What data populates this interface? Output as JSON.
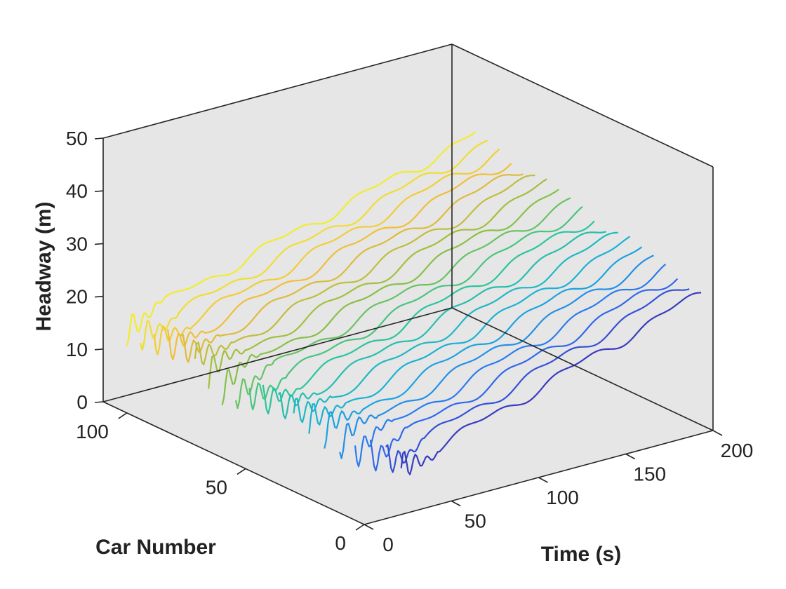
{
  "chart_data": {
    "type": "line3d",
    "xlabel": "Time (s)",
    "ylabel": "Car Number",
    "zlabel": "Headway (m)",
    "xlim": [
      0,
      200
    ],
    "ylim": [
      0,
      110
    ],
    "zlim": [
      0,
      50
    ],
    "x_ticks": [
      0,
      50,
      100,
      150,
      200
    ],
    "y_ticks": [
      0,
      50,
      100
    ],
    "z_ticks": [
      0,
      10,
      20,
      30,
      40,
      50
    ],
    "grid": false,
    "colormap": [
      "#3e26a8",
      "#2e6ef5",
      "#18afdb",
      "#2ac59c",
      "#8fc13f",
      "#f0b93b",
      "#f2ec2e"
    ],
    "series": [
      {
        "car": 5,
        "x_start": 28,
        "x_end": 200,
        "z_start": 7,
        "z_end": 25
      },
      {
        "car": 10,
        "x_start": 26,
        "x_end": 200,
        "z_start": 7.5,
        "z_end": 26
      },
      {
        "car": 15,
        "x_start": 24,
        "x_end": 200,
        "z_start": 8,
        "z_end": 26.5
      },
      {
        "car": 20,
        "x_start": 22,
        "x_end": 200,
        "z_start": 8.5,
        "z_end": 27
      },
      {
        "car": 25,
        "x_start": 20,
        "x_end": 200,
        "z_start": 9,
        "z_end": 27.5
      },
      {
        "car": 30,
        "x_start": 18,
        "x_end": 200,
        "z_start": 9.5,
        "z_end": 28
      },
      {
        "car": 35,
        "x_start": 16,
        "x_end": 200,
        "z_start": 10,
        "z_end": 28.5
      },
      {
        "car": 40,
        "x_start": 14,
        "x_end": 200,
        "z_start": 10.5,
        "z_end": 29
      },
      {
        "car": 45,
        "x_start": 12,
        "x_end": 200,
        "z_start": 11,
        "z_end": 29.5
      },
      {
        "car": 50,
        "x_start": 10,
        "x_end": 200,
        "z_start": 11.5,
        "z_end": 30
      },
      {
        "car": 55,
        "x_start": 9,
        "x_end": 200,
        "z_start": 12,
        "z_end": 30.5
      },
      {
        "car": 60,
        "x_start": 8,
        "x_end": 200,
        "z_start": 12.5,
        "z_end": 31
      },
      {
        "car": 65,
        "x_start": 7,
        "x_end": 200,
        "z_start": 13,
        "z_end": 31.5
      },
      {
        "car": 70,
        "x_start": 6,
        "x_end": 200,
        "z_start": 13.5,
        "z_end": 32
      },
      {
        "car": 75,
        "x_start": 5,
        "x_end": 200,
        "z_start": 14,
        "z_end": 32.5
      },
      {
        "car": 80,
        "x_start": 4,
        "x_end": 200,
        "z_start": 14.5,
        "z_end": 33
      },
      {
        "car": 85,
        "x_start": 3,
        "x_end": 200,
        "z_start": 15,
        "z_end": 33.5
      },
      {
        "car": 90,
        "x_start": 2,
        "x_end": 200,
        "z_start": 15.5,
        "z_end": 34
      },
      {
        "car": 95,
        "x_start": 1,
        "x_end": 200,
        "z_start": 16,
        "z_end": 34.5
      },
      {
        "car": 100,
        "x_start": 0,
        "x_end": 200,
        "z_start": 17,
        "z_end": 35
      }
    ]
  }
}
